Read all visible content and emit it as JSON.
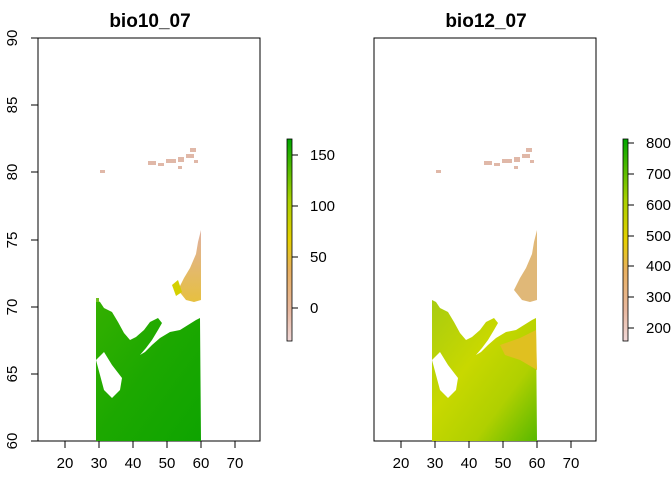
{
  "panels": [
    {
      "title": "bio10_07",
      "x_ticks": [
        "20",
        "30",
        "40",
        "50",
        "60",
        "70"
      ],
      "y_ticks": [
        "60",
        "65",
        "70",
        "75",
        "80",
        "85",
        "90"
      ],
      "legend_ticks": [
        "0",
        "50",
        "100",
        "150"
      ],
      "legend_range": [
        -30,
        168
      ]
    },
    {
      "title": "bio12_07",
      "x_ticks": [
        "20",
        "30",
        "40",
        "50",
        "60",
        "70"
      ],
      "y_ticks": [],
      "legend_ticks": [
        "200",
        "300",
        "400",
        "500",
        "600",
        "700",
        "800"
      ],
      "legend_range": [
        160,
        820
      ]
    }
  ],
  "x_range": [
    13,
    77
  ],
  "y_range": [
    60,
    90
  ],
  "colors": {
    "low": "#f2f2f2",
    "mid_low": "#e8c0a0",
    "mid": "#e6b84a",
    "mid_high": "#d8e000",
    "high": "#00a600"
  }
}
